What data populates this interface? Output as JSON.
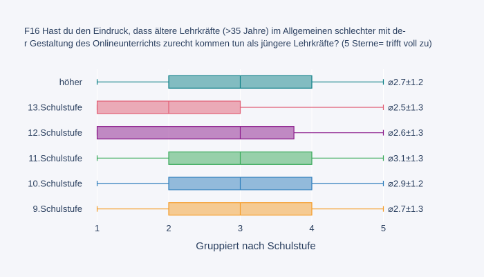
{
  "chart_data": {
    "type": "box",
    "orientation": "horizontal",
    "title_lines": [
      "F16 Hast du den Eindruck, dass  ältere Lehrkräfte (>35 Jahre) im Allgemeinen schlechter mit de-",
      "r Gestaltung des  Onlineunterrichts zurecht kommen tun als jüngere Lehrkräfte? (5 Sterne= trifft voll zu)"
    ],
    "xlabel": "Gruppiert nach Schulstufe",
    "xlim": [
      0.85,
      5.15
    ],
    "xticks": [
      1,
      2,
      3,
      4,
      5
    ],
    "grid": true,
    "series": [
      {
        "category": "höher",
        "min": 1,
        "q1": 2,
        "median": 3,
        "q3": 4,
        "max": 5,
        "annotation": "⌀2.7±1.2",
        "color": "#108188"
      },
      {
        "category": "13.Schulstufe",
        "min": 1,
        "q1": 1,
        "median": 2,
        "q3": 3,
        "max": 5,
        "annotation": "⌀2.5±1.3",
        "color": "#e15e74"
      },
      {
        "category": "12.Schulstufe",
        "min": 1,
        "q1": 1,
        "median": 3,
        "q3": 3.75,
        "max": 5,
        "annotation": "⌀2.6±1.3",
        "color": "#8b1b8b"
      },
      {
        "category": "11.Schulstufe",
        "min": 1,
        "q1": 2,
        "median": 3,
        "q3": 4,
        "max": 5,
        "annotation": "⌀3.1±1.3",
        "color": "#3aaa5a"
      },
      {
        "category": "10.Schulstufe",
        "min": 1,
        "q1": 2,
        "median": 3,
        "q3": 4,
        "max": 5,
        "annotation": "⌀2.9±1.2",
        "color": "#2f7ebc"
      },
      {
        "category": "9.Schulstufe",
        "min": 1,
        "q1": 2,
        "median": 3,
        "q3": 4,
        "max": 5,
        "annotation": "⌀2.7±1.3",
        "color": "#f59d2a"
      }
    ]
  }
}
